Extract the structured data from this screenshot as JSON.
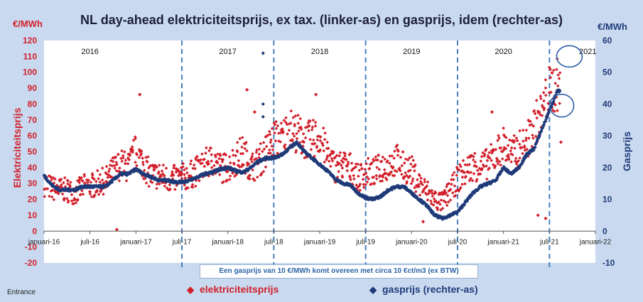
{
  "chart_data": {
    "type": "scatter",
    "title": "NL day-ahead elektriciteitsprijs, ex tax. (linker-as) en gasprijs, idem (rechter-as)",
    "unit_left": "€/MWh",
    "unit_right": "€/MWh",
    "ylabel_left": "Elektriciteitsprijs",
    "ylabel_right": "Gasprijs",
    "ylim_left": [
      -20,
      120
    ],
    "ylim_right": [
      -10,
      60
    ],
    "y_ticks_left": [
      "-20",
      "-10",
      "0",
      "10",
      "20",
      "30",
      "40",
      "50",
      "60",
      "70",
      "80",
      "90",
      "100",
      "110",
      "120"
    ],
    "y_ticks_right": [
      "-10",
      "0",
      "10",
      "20",
      "30",
      "40",
      "50",
      "60"
    ],
    "x_ticks": [
      "januari-16",
      "juli-16",
      "januari-17",
      "juli-17",
      "januari-18",
      "juli-18",
      "januari-19",
      "juli-19",
      "januari-20",
      "juli-20",
      "januari-21",
      "juli-21",
      "januari-22"
    ],
    "year_labels": [
      "2016",
      "2017",
      "2018",
      "2019",
      "2020",
      "2021"
    ],
    "grid": false,
    "colors": {
      "electricity": "#d21f2a",
      "gas": "#1f3a78",
      "divider": "#4a7fc1",
      "circle": "#2d5da8"
    },
    "series": [
      {
        "name": "elektriciteitsprijs",
        "axis": "left",
        "x": [
          "2016-01",
          "2016-02",
          "2016-03",
          "2016-04",
          "2016-05",
          "2016-06",
          "2016-07",
          "2016-08",
          "2016-09",
          "2016-10",
          "2016-11",
          "2016-12",
          "2017-01",
          "2017-02",
          "2017-03",
          "2017-04",
          "2017-05",
          "2017-06",
          "2017-07",
          "2017-08",
          "2017-09",
          "2017-10",
          "2017-11",
          "2017-12",
          "2018-01",
          "2018-02",
          "2018-03",
          "2018-04",
          "2018-05",
          "2018-06",
          "2018-07",
          "2018-08",
          "2018-09",
          "2018-10",
          "2018-11",
          "2018-12",
          "2019-01",
          "2019-02",
          "2019-03",
          "2019-04",
          "2019-05",
          "2019-06",
          "2019-07",
          "2019-08",
          "2019-09",
          "2019-10",
          "2019-11",
          "2019-12",
          "2020-01",
          "2020-02",
          "2020-03",
          "2020-04",
          "2020-05",
          "2020-06",
          "2020-07",
          "2020-08",
          "2020-09",
          "2020-10",
          "2020-11",
          "2020-12",
          "2021-01",
          "2021-02",
          "2021-03",
          "2021-04",
          "2021-05",
          "2021-06",
          "2021-07",
          "2021-08"
        ],
        "values": [
          30,
          27,
          26,
          26,
          24,
          28,
          28,
          30,
          32,
          38,
          42,
          40,
          50,
          42,
          35,
          35,
          33,
          33,
          34,
          35,
          38,
          42,
          45,
          40,
          40,
          45,
          50,
          40,
          43,
          50,
          58,
          58,
          65,
          62,
          57,
          58,
          60,
          48,
          40,
          42,
          40,
          33,
          37,
          37,
          40,
          42,
          45,
          40,
          38,
          30,
          25,
          20,
          18,
          25,
          33,
          37,
          42,
          40,
          43,
          48,
          55,
          48,
          52,
          55,
          66,
          75,
          88,
          92
        ]
      },
      {
        "name": "gasprijs (rechter-as)",
        "axis": "right",
        "x": [
          "2016-01",
          "2016-02",
          "2016-03",
          "2016-04",
          "2016-05",
          "2016-06",
          "2016-07",
          "2016-08",
          "2016-09",
          "2016-10",
          "2016-11",
          "2016-12",
          "2017-01",
          "2017-02",
          "2017-03",
          "2017-04",
          "2017-05",
          "2017-06",
          "2017-07",
          "2017-08",
          "2017-09",
          "2017-10",
          "2017-11",
          "2017-12",
          "2018-01",
          "2018-02",
          "2018-03",
          "2018-04",
          "2018-05",
          "2018-06",
          "2018-07",
          "2018-08",
          "2018-09",
          "2018-10",
          "2018-11",
          "2018-12",
          "2019-01",
          "2019-02",
          "2019-03",
          "2019-04",
          "2019-05",
          "2019-06",
          "2019-07",
          "2019-08",
          "2019-09",
          "2019-10",
          "2019-11",
          "2019-12",
          "2020-01",
          "2020-02",
          "2020-03",
          "2020-04",
          "2020-05",
          "2020-06",
          "2020-07",
          "2020-08",
          "2020-09",
          "2020-10",
          "2020-11",
          "2020-12",
          "2021-01",
          "2021-02",
          "2021-03",
          "2021-04",
          "2021-05",
          "2021-06",
          "2021-07",
          "2021-08"
        ],
        "values": [
          17.5,
          14.5,
          13,
          13,
          13,
          14,
          14,
          14,
          14,
          16,
          18,
          18,
          19.5,
          18,
          17,
          16,
          16,
          15.5,
          15.5,
          16,
          17,
          18,
          18.5,
          19.5,
          20,
          19,
          18.5,
          20,
          22,
          23,
          23,
          24,
          26,
          28,
          25,
          23,
          21,
          19,
          16.5,
          15,
          14.5,
          12,
          10.5,
          10,
          11,
          13,
          14,
          14,
          12,
          10,
          8,
          5,
          4,
          5,
          6,
          9,
          12,
          14,
          15,
          16,
          20,
          18,
          20,
          24,
          26,
          32,
          38,
          44
        ]
      }
    ],
    "outliers_electricity": [
      {
        "x": "2016-10",
        "y": 1
      },
      {
        "x": "2017-01",
        "y": 86
      },
      {
        "x": "2018-03",
        "y": 89
      },
      {
        "x": "2018-04",
        "y": 75
      },
      {
        "x": "2018-12",
        "y": 86
      },
      {
        "x": "2020-02",
        "y": 6
      },
      {
        "x": "2020-11",
        "y": 75
      },
      {
        "x": "2021-05",
        "y": 10
      },
      {
        "x": "2021-06",
        "y": 8
      },
      {
        "x": "2021-08",
        "y": 56
      }
    ],
    "outliers_gas": [
      {
        "x": "2018-05",
        "y": 56
      },
      {
        "x": "2018-05",
        "y": 40
      },
      {
        "x": "2018-05",
        "y": 36
      }
    ],
    "annotation": "Een gasprijs van 10 €/MWh komt overeen met circa 10 €ct/m3 (ex BTW)"
  },
  "legend": {
    "electricity_marker": "◆",
    "electricity_label": "elektriciteitsprijs",
    "gas_marker": "◆",
    "gas_label": "gasprijs (rechter-as)"
  },
  "source": "Entrance"
}
